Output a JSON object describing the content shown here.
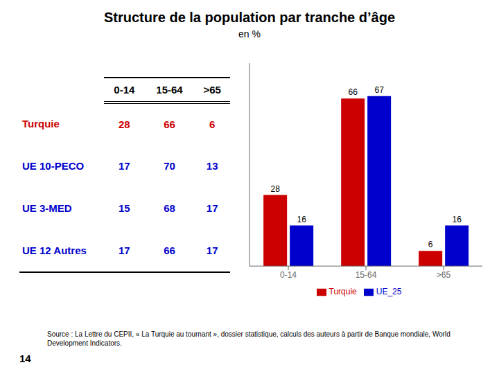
{
  "chart_data": [
    {
      "type": "table",
      "categories": [
        "0-14",
        "15-64",
        ">65"
      ],
      "series": [
        {
          "name": "Turquie",
          "color": "#CC0000",
          "values": [
            28,
            66,
            6
          ]
        },
        {
          "name": "UE 10-PECO",
          "color": "#0000CC",
          "values": [
            17,
            70,
            13
          ]
        },
        {
          "name": "UE 3-MED",
          "color": "#0000CC",
          "values": [
            15,
            68,
            17
          ]
        },
        {
          "name": "UE 12 Autres",
          "color": "#0000CC",
          "values": [
            17,
            66,
            17
          ]
        }
      ]
    },
    {
      "type": "bar",
      "title": "Structure de la population par tranche d’âge",
      "subtitle": "en %",
      "categories": [
        "0-14",
        "15-64",
        ">65"
      ],
      "series": [
        {
          "name": "Turquie",
          "color": "#CC0000",
          "values": [
            28,
            66,
            6
          ]
        },
        {
          "name": "UE_25",
          "color": "#0000CC",
          "values": [
            16,
            67,
            16
          ]
        }
      ],
      "ylim": [
        0,
        80
      ],
      "yticks": [],
      "tick_labels": "x",
      "data_labels": true,
      "grid": false,
      "legend": "bottom",
      "annotations": [
        "Source : La Lettre du CEPII, « La Turquie au tournant », dossier statistique, calculs des auteurs à partir de Banque mondiale,  World Development Indicators.",
        "14"
      ]
    }
  ]
}
